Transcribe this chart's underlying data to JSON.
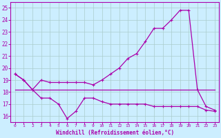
{
  "xlabel": "Windchill (Refroidissement éolien,°C)",
  "xlim": [
    -0.5,
    23.5
  ],
  "ylim": [
    15.5,
    25.5
  ],
  "yticks": [
    16,
    17,
    18,
    19,
    20,
    21,
    22,
    23,
    24,
    25
  ],
  "xticks": [
    0,
    1,
    2,
    3,
    4,
    5,
    6,
    7,
    8,
    9,
    10,
    11,
    12,
    13,
    14,
    15,
    16,
    17,
    18,
    19,
    20,
    21,
    22,
    23
  ],
  "bg_color": "#cceeff",
  "grid_color": "#aacccc",
  "line_color": "#aa00aa",
  "line1_x": [
    0,
    1,
    2,
    3,
    4,
    5,
    6,
    7,
    8,
    9,
    10,
    11,
    12,
    13,
    14,
    15,
    16,
    17,
    18,
    19,
    20,
    21,
    22,
    23
  ],
  "line1_y": [
    19.5,
    19.0,
    18.2,
    19.0,
    18.8,
    18.8,
    18.8,
    18.8,
    18.8,
    18.6,
    19.0,
    19.5,
    20.0,
    20.8,
    21.2,
    22.2,
    23.3,
    23.3,
    24.0,
    24.8,
    24.8,
    18.2,
    16.8,
    16.5
  ],
  "line2_x": [
    0,
    1,
    2,
    3,
    4,
    5,
    6,
    7,
    8,
    9,
    10,
    11,
    12,
    13,
    14,
    15,
    16,
    17,
    18,
    19,
    20,
    21,
    22,
    23
  ],
  "line2_y": [
    18.2,
    18.2,
    18.2,
    18.2,
    18.2,
    18.2,
    18.2,
    18.2,
    18.2,
    18.2,
    18.2,
    18.2,
    18.2,
    18.2,
    18.2,
    18.2,
    18.2,
    18.2,
    18.2,
    18.2,
    18.2,
    18.2,
    18.2,
    18.2
  ],
  "line3_x": [
    0,
    1,
    2,
    3,
    4,
    5,
    6,
    7,
    8,
    9,
    10,
    11,
    12,
    13,
    14,
    15,
    16,
    17,
    18,
    19,
    20,
    21,
    22,
    23
  ],
  "line3_y": [
    19.5,
    19.0,
    18.2,
    17.5,
    17.5,
    17.0,
    15.8,
    16.4,
    17.5,
    17.5,
    17.2,
    17.0,
    17.0,
    17.0,
    17.0,
    17.0,
    16.8,
    16.8,
    16.8,
    16.8,
    16.8,
    16.8,
    16.5,
    16.4
  ]
}
